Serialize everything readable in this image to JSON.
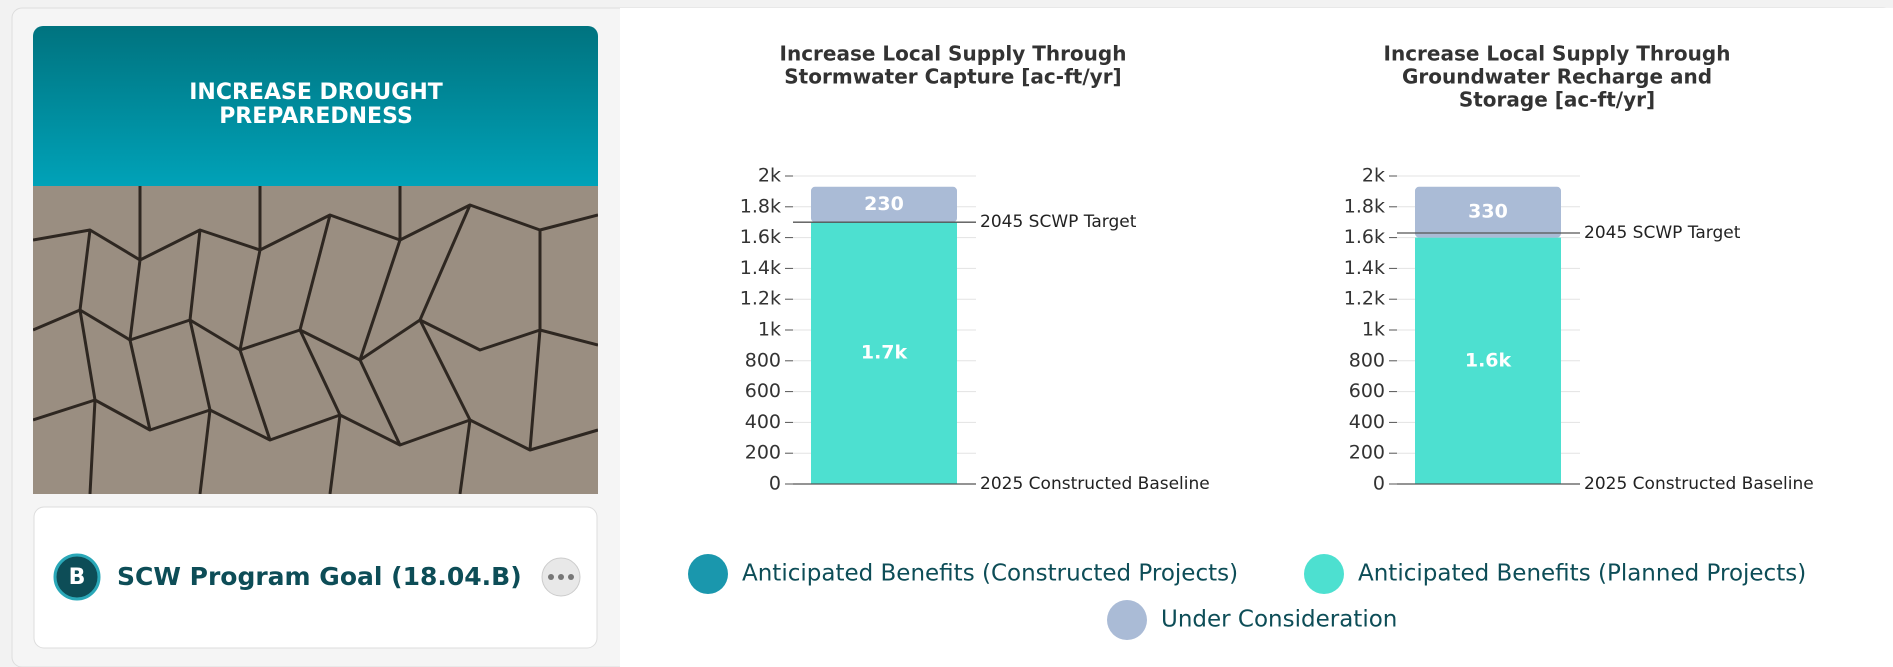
{
  "card": {
    "title": [
      "INCREASE DROUGHT",
      "PREPAREDNESS"
    ],
    "badge": "B",
    "goal": "SCW Program Goal (18.04.B)"
  },
  "chart_data": [
    {
      "type": "stacked-bar",
      "title": [
        "Increase Local Supply Through",
        "Stormwater Capture [ac-ft/yr]"
      ],
      "ylim": [
        0,
        2000
      ],
      "yticks": [
        0,
        200,
        400,
        600,
        800,
        {
          "value": 1000,
          "label": "1k"
        },
        {
          "value": 1200,
          "label": "1.2k"
        },
        {
          "value": 1400,
          "label": "1.4k"
        },
        {
          "value": 1600,
          "label": "1.6k"
        },
        {
          "value": 1800,
          "label": "1.8k"
        },
        {
          "value": 2000,
          "label": "2k"
        }
      ],
      "grid": true,
      "series": [
        {
          "name": "Anticipated Benefits (Constructed Projects)",
          "color": "#1a97ad",
          "values": [
            0
          ]
        },
        {
          "name": "Anticipated Benefits (Planned Projects)",
          "color": "#4de0d0",
          "values": [
            1700
          ],
          "value_labels": [
            "1.7k"
          ]
        },
        {
          "name": "Under Consideration",
          "color": "#aabbd6",
          "values": [
            230
          ]
        }
      ],
      "reference_lines": [
        {
          "value": 1700,
          "label": "2045 SCWP Target"
        },
        {
          "value": 0,
          "label": "2025 Constructed Baseline"
        }
      ]
    },
    {
      "type": "stacked-bar",
      "title": [
        "Increase Local Supply Through",
        "Groundwater Recharge and",
        "Storage [ac-ft/yr]"
      ],
      "ylim": [
        0,
        2000
      ],
      "yticks": [
        0,
        200,
        400,
        600,
        800,
        {
          "value": 1000,
          "label": "1k"
        },
        {
          "value": 1200,
          "label": "1.2k"
        },
        {
          "value": 1400,
          "label": "1.4k"
        },
        {
          "value": 1600,
          "label": "1.6k"
        },
        {
          "value": 1800,
          "label": "1.8k"
        },
        {
          "value": 2000,
          "label": "2k"
        }
      ],
      "grid": true,
      "series": [
        {
          "name": "Anticipated Benefits (Constructed Projects)",
          "color": "#1a97ad",
          "values": [
            0
          ]
        },
        {
          "name": "Anticipated Benefits (Planned Projects)",
          "color": "#4de0d0",
          "values": [
            1600
          ],
          "value_labels": [
            "1.6k"
          ]
        },
        {
          "name": "Under Consideration",
          "color": "#aabbd6",
          "values": [
            330
          ]
        }
      ],
      "reference_lines": [
        {
          "value": 1630,
          "label": "2045 SCWP Target"
        },
        {
          "value": 0,
          "label": "2025 Constructed Baseline"
        }
      ]
    }
  ]
}
